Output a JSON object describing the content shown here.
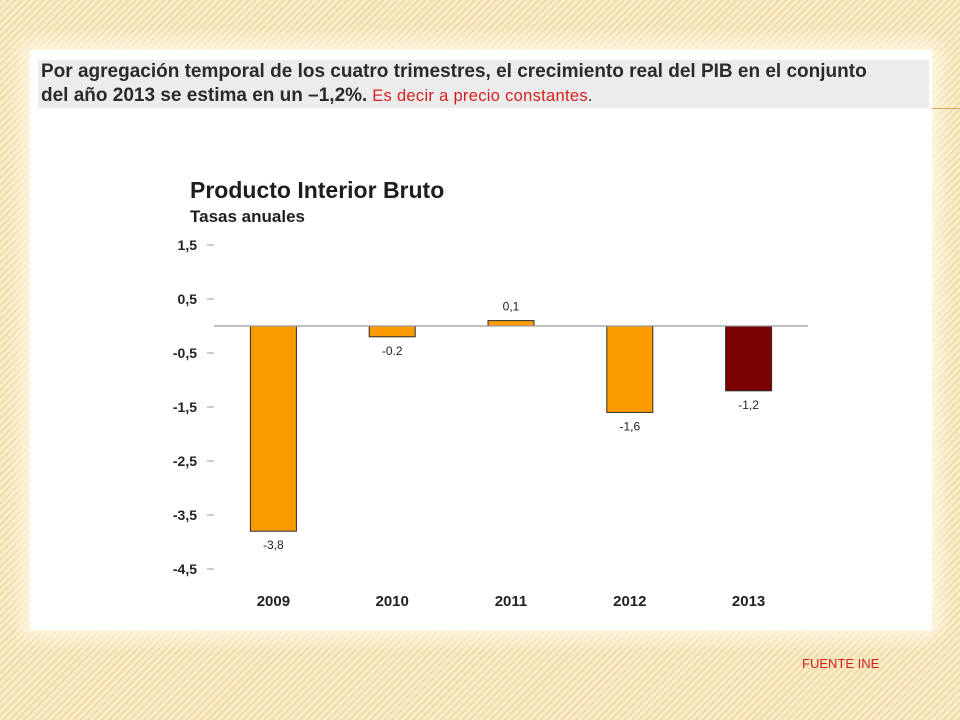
{
  "header": {
    "line1": "Por agregación temporal de los cuatro trimestres, el crecimiento real del PIB en el conjunto",
    "line2": "del año 2013 se estima en un –1,2%.",
    "annotation": " Es decir a precio constantes",
    "annotation_end": "."
  },
  "source": "FUENTE INE",
  "colors": {
    "bar_default": "#fb9b00",
    "bar_highlight": "#7b0000",
    "annotation": "#d42020"
  },
  "chart_data": {
    "type": "bar",
    "title": "Producto Interior Bruto",
    "subtitle": "Tasas anuales",
    "categories": [
      "2009",
      "2010",
      "2011",
      "2012",
      "2013"
    ],
    "values": [
      -3.8,
      -0.2,
      0.1,
      -1.6,
      -1.2
    ],
    "data_labels": [
      "-3,8",
      "-0.2",
      "0,1",
      "-1,6",
      "-1,2"
    ],
    "highlight_category": "2013",
    "yticks": [
      "1,5",
      "0,5",
      "-0,5",
      "-1,5",
      "-2,5",
      "-3,5",
      "-4,5"
    ],
    "ytick_values": [
      1.5,
      0.5,
      -0.5,
      -1.5,
      -2.5,
      -3.5,
      -4.5
    ],
    "ylim": [
      -4.5,
      1.5
    ],
    "xlabel": "",
    "ylabel": "",
    "grid": false
  }
}
